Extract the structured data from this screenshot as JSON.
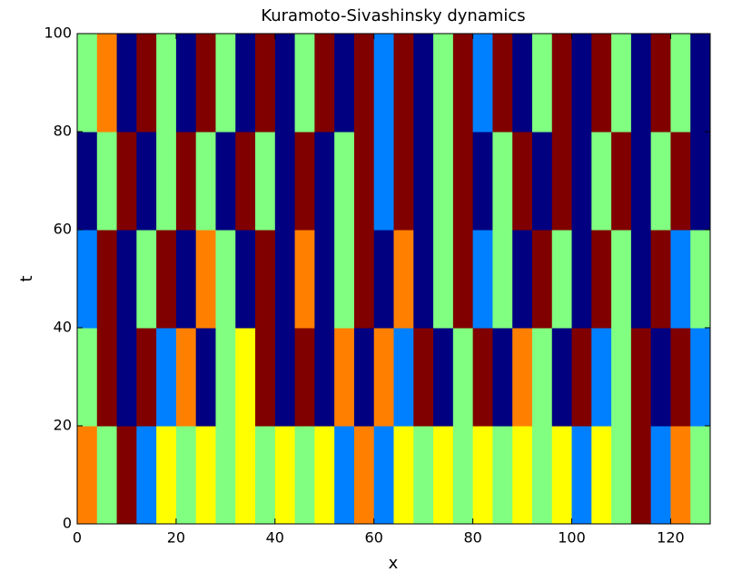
{
  "chart_data": {
    "type": "heatmap",
    "title": "Kuramoto-Sivashinsky dynamics",
    "x_label": "x",
    "y_label": "t",
    "xlim": [
      0,
      128
    ],
    "ylim": [
      0,
      100
    ],
    "xticks": [
      0,
      20,
      40,
      60,
      80,
      100,
      120
    ],
    "yticks": [
      0,
      20,
      40,
      60,
      80,
      100
    ],
    "colormap": "jet",
    "z": [
      [
        1,
        0,
        2,
        -1,
        0.5,
        0,
        0.5,
        0,
        0.5,
        0,
        0.5,
        0,
        0.5,
        -1,
        1,
        -1,
        0.5,
        0,
        0.5,
        0,
        0.5,
        0,
        0.5,
        0,
        0.5,
        -1,
        0.5,
        0,
        2,
        -1,
        1,
        0
      ],
      [
        0,
        2,
        -2,
        2,
        -1,
        1,
        -2,
        0,
        0.5,
        2,
        -2,
        2,
        -2,
        1,
        -2,
        1,
        -1,
        2,
        -2,
        0,
        2,
        -2,
        1,
        0,
        -2,
        2,
        -1,
        0,
        2,
        -2,
        2,
        -1
      ],
      [
        -1,
        2,
        -2,
        0,
        2,
        -2,
        1,
        0,
        -2,
        2,
        -2,
        1,
        -2,
        0,
        2,
        -2,
        1,
        -2,
        0,
        2,
        -1,
        0,
        -2,
        2,
        0,
        -2,
        2,
        0,
        -2,
        2,
        -1,
        0
      ],
      [
        -2,
        0,
        2,
        -2,
        0,
        2,
        0,
        -2,
        2,
        0,
        -2,
        2,
        -2,
        0,
        2,
        -1,
        2,
        -2,
        0,
        2,
        -2,
        0,
        2,
        -2,
        2,
        -2,
        0,
        2,
        -2,
        0,
        2,
        -2
      ],
      [
        0,
        1,
        -2,
        2,
        0,
        -2,
        2,
        0,
        -2,
        2,
        -2,
        0,
        2,
        -2,
        2,
        -1,
        2,
        -2,
        0,
        2,
        -1,
        2,
        -2,
        0,
        2,
        -2,
        2,
        0,
        -2,
        2,
        0,
        -2
      ]
    ]
  }
}
